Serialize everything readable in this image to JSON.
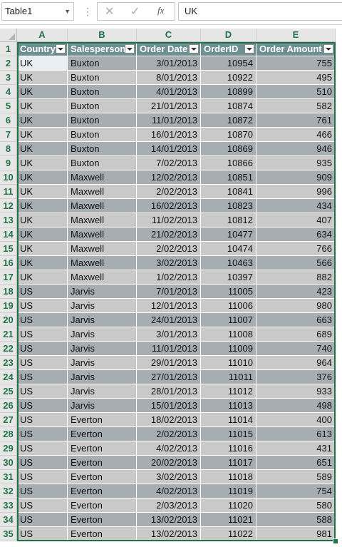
{
  "formula_bar": {
    "name_box": "Table1",
    "cancel_symbol": "✕",
    "enter_symbol": "✓",
    "fx_label": "fx",
    "formula_value": "UK"
  },
  "columns": [
    "A",
    "B",
    "C",
    "D",
    "E"
  ],
  "table": {
    "headers": [
      "Country",
      "Salesperson",
      "Order Date",
      "OrderID",
      "Order Amount"
    ],
    "rows": [
      {
        "n": "2",
        "country": "UK",
        "salesperson": "Buxton",
        "date": "3/01/2013",
        "id": "10954",
        "amount": "755"
      },
      {
        "n": "3",
        "country": "UK",
        "salesperson": "Buxton",
        "date": "8/01/2013",
        "id": "10922",
        "amount": "495"
      },
      {
        "n": "4",
        "country": "UK",
        "salesperson": "Buxton",
        "date": "4/01/2013",
        "id": "10899",
        "amount": "510"
      },
      {
        "n": "5",
        "country": "UK",
        "salesperson": "Buxton",
        "date": "21/01/2013",
        "id": "10874",
        "amount": "582"
      },
      {
        "n": "6",
        "country": "UK",
        "salesperson": "Buxton",
        "date": "11/01/2013",
        "id": "10872",
        "amount": "761"
      },
      {
        "n": "7",
        "country": "UK",
        "salesperson": "Buxton",
        "date": "16/01/2013",
        "id": "10870",
        "amount": "466"
      },
      {
        "n": "8",
        "country": "UK",
        "salesperson": "Buxton",
        "date": "14/01/2013",
        "id": "10869",
        "amount": "946"
      },
      {
        "n": "9",
        "country": "UK",
        "salesperson": "Buxton",
        "date": "7/02/2013",
        "id": "10866",
        "amount": "935"
      },
      {
        "n": "10",
        "country": "UK",
        "salesperson": "Maxwell",
        "date": "12/02/2013",
        "id": "10851",
        "amount": "909"
      },
      {
        "n": "11",
        "country": "UK",
        "salesperson": "Maxwell",
        "date": "2/02/2013",
        "id": "10841",
        "amount": "996"
      },
      {
        "n": "12",
        "country": "UK",
        "salesperson": "Maxwell",
        "date": "16/02/2013",
        "id": "10823",
        "amount": "434"
      },
      {
        "n": "13",
        "country": "UK",
        "salesperson": "Maxwell",
        "date": "11/02/2013",
        "id": "10812",
        "amount": "407"
      },
      {
        "n": "14",
        "country": "UK",
        "salesperson": "Maxwell",
        "date": "21/02/2013",
        "id": "10477",
        "amount": "634"
      },
      {
        "n": "15",
        "country": "UK",
        "salesperson": "Maxwell",
        "date": "2/02/2013",
        "id": "10474",
        "amount": "766"
      },
      {
        "n": "16",
        "country": "UK",
        "salesperson": "Maxwell",
        "date": "3/02/2013",
        "id": "10463",
        "amount": "566"
      },
      {
        "n": "17",
        "country": "UK",
        "salesperson": "Maxwell",
        "date": "1/02/2013",
        "id": "10397",
        "amount": "882"
      },
      {
        "n": "18",
        "country": "US",
        "salesperson": "Jarvis",
        "date": "7/01/2013",
        "id": "11005",
        "amount": "423"
      },
      {
        "n": "19",
        "country": "US",
        "salesperson": "Jarvis",
        "date": "12/01/2013",
        "id": "11006",
        "amount": "980"
      },
      {
        "n": "20",
        "country": "US",
        "salesperson": "Jarvis",
        "date": "24/01/2013",
        "id": "11007",
        "amount": "663"
      },
      {
        "n": "21",
        "country": "US",
        "salesperson": "Jarvis",
        "date": "3/01/2013",
        "id": "11008",
        "amount": "689"
      },
      {
        "n": "22",
        "country": "US",
        "salesperson": "Jarvis",
        "date": "11/01/2013",
        "id": "11009",
        "amount": "740"
      },
      {
        "n": "23",
        "country": "US",
        "salesperson": "Jarvis",
        "date": "29/01/2013",
        "id": "11010",
        "amount": "964"
      },
      {
        "n": "24",
        "country": "US",
        "salesperson": "Jarvis",
        "date": "27/01/2013",
        "id": "11011",
        "amount": "376"
      },
      {
        "n": "25",
        "country": "US",
        "salesperson": "Jarvis",
        "date": "28/01/2013",
        "id": "11012",
        "amount": "933"
      },
      {
        "n": "26",
        "country": "US",
        "salesperson": "Jarvis",
        "date": "15/01/2013",
        "id": "11013",
        "amount": "498"
      },
      {
        "n": "27",
        "country": "US",
        "salesperson": "Everton",
        "date": "18/02/2013",
        "id": "11014",
        "amount": "400"
      },
      {
        "n": "28",
        "country": "US",
        "salesperson": "Everton",
        "date": "2/02/2013",
        "id": "11015",
        "amount": "613"
      },
      {
        "n": "29",
        "country": "US",
        "salesperson": "Everton",
        "date": "4/02/2013",
        "id": "11016",
        "amount": "431"
      },
      {
        "n": "30",
        "country": "US",
        "salesperson": "Everton",
        "date": "20/02/2013",
        "id": "11017",
        "amount": "651"
      },
      {
        "n": "31",
        "country": "US",
        "salesperson": "Everton",
        "date": "3/02/2013",
        "id": "11018",
        "amount": "589"
      },
      {
        "n": "32",
        "country": "US",
        "salesperson": "Everton",
        "date": "4/02/2013",
        "id": "11019",
        "amount": "754"
      },
      {
        "n": "33",
        "country": "US",
        "salesperson": "Everton",
        "date": "2/03/2013",
        "id": "11020",
        "amount": "580"
      },
      {
        "n": "34",
        "country": "US",
        "salesperson": "Everton",
        "date": "13/02/2013",
        "id": "11021",
        "amount": "588"
      },
      {
        "n": "35",
        "country": "US",
        "salesperson": "Everton",
        "date": "13/02/2013",
        "id": "11022",
        "amount": "981"
      }
    ]
  },
  "colors": {
    "header_fill": "#6e8f93",
    "band_dark": "#a6aeb1",
    "band_light": "#c9c9c9",
    "selection_border": "#217346"
  }
}
